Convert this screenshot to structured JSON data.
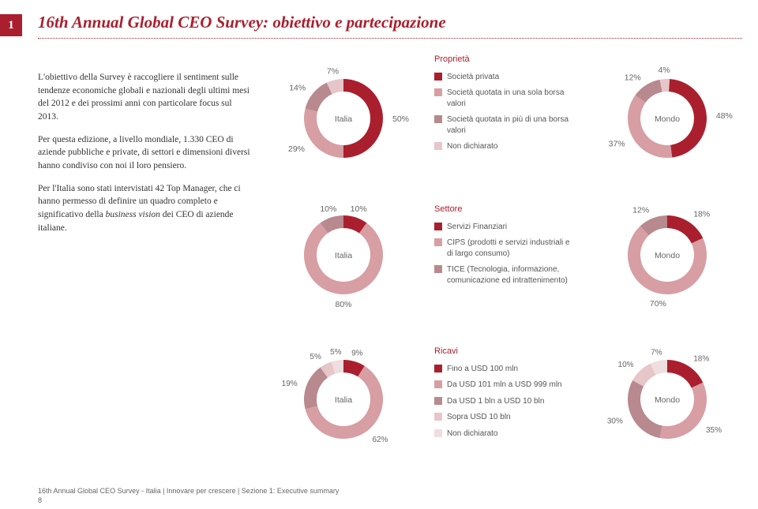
{
  "tab_number": "1",
  "title": "16th Annual Global CEO Survey: obiettivo e partecipazione",
  "paragraphs": {
    "p1": "L'obiettivo della Survey è raccogliere il sentiment sulle tendenze economiche globali e nazionali degli ultimi mesi del 2012 e dei prossimi anni con particolare focus sul 2013.",
    "p2a": "Per questa edizione, a livello mondiale, 1.330 CEO di aziende pubbliche e private, di settori e dimensioni diversi hanno condiviso con noi il loro pensiero.",
    "p3a": "Per l'Italia sono stati intervistati 42 Top Manager, che ci hanno permesso di definire un quadro completo e significativo della ",
    "p3i": "business vision",
    "p3b": " dei CEO di aziende italiane."
  },
  "footer": "16th Annual Global CEO Survey - Italia | Innovare per crescere | Sezione 1: Executive summary",
  "page_num": "8",
  "colors": {
    "c1": "#aa1f2e",
    "c2": "#d79ea3",
    "c3": "#b8898e",
    "c4": "#e6c6c9",
    "c5": "#efdedf"
  },
  "legends": {
    "proprieta": {
      "title": "Proprietà",
      "items": [
        {
          "color": "#aa1f2e",
          "label": "Società privata"
        },
        {
          "color": "#d79ea3",
          "label": "Società quotata in una sola borsa valori"
        },
        {
          "color": "#b8898e",
          "label": "Società quotata in più di una borsa valori"
        },
        {
          "color": "#e6c6c9",
          "label": "Non dichiarato"
        }
      ]
    },
    "settore": {
      "title": "Settore",
      "items": [
        {
          "color": "#aa1f2e",
          "label": "Servizi Finanziari"
        },
        {
          "color": "#d79ea3",
          "label": "CIPS (prodotti e servizi industriali e di largo consumo)"
        },
        {
          "color": "#b8898e",
          "label": "TICE (Tecnologia, informazione, comunicazione ed intrattenimento)"
        }
      ]
    },
    "ricavi": {
      "title": "Ricavi",
      "items": [
        {
          "color": "#aa1f2e",
          "label": "Fino a USD 100 mln"
        },
        {
          "color": "#d79ea3",
          "label": "Da USD 101 mln a USD 999 mln"
        },
        {
          "color": "#b8898e",
          "label": "Da USD 1 bln a USD 10 bln"
        },
        {
          "color": "#e6c6c9",
          "label": "Sopra USD 10 bln"
        },
        {
          "color": "#efdedf",
          "label": "Non dichiarato"
        }
      ]
    }
  },
  "donuts": {
    "italia_proprieta": {
      "center": "Italia",
      "slices": [
        {
          "color": "#aa1f2e",
          "pct": 50,
          "label": "50%"
        },
        {
          "color": "#d79ea3",
          "pct": 29,
          "label": "29%"
        },
        {
          "color": "#b8898e",
          "pct": 14,
          "label": "14%"
        },
        {
          "color": "#e6c6c9",
          "pct": 7,
          "label": "7%"
        }
      ]
    },
    "mondo_proprieta": {
      "center": "Mondo",
      "slices": [
        {
          "color": "#aa1f2e",
          "pct": 48,
          "label": "48%"
        },
        {
          "color": "#d79ea3",
          "pct": 37,
          "label": "37%"
        },
        {
          "color": "#b8898e",
          "pct": 12,
          "label": "12%"
        },
        {
          "color": "#e6c6c9",
          "pct": 4,
          "label": "4%"
        }
      ]
    },
    "italia_settore": {
      "center": "Italia",
      "slices": [
        {
          "color": "#aa1f2e",
          "pct": 10,
          "label": "10%"
        },
        {
          "color": "#d79ea3",
          "pct": 80,
          "label": "80%"
        },
        {
          "color": "#b8898e",
          "pct": 10,
          "label": "10%"
        }
      ]
    },
    "mondo_settore": {
      "center": "Mondo",
      "slices": [
        {
          "color": "#aa1f2e",
          "pct": 18,
          "label": "18%"
        },
        {
          "color": "#d79ea3",
          "pct": 70,
          "label": "70%"
        },
        {
          "color": "#b8898e",
          "pct": 12,
          "label": "12%"
        }
      ]
    },
    "italia_ricavi": {
      "center": "Italia",
      "slices": [
        {
          "color": "#aa1f2e",
          "pct": 9,
          "label": "9%"
        },
        {
          "color": "#d79ea3",
          "pct": 62,
          "label": "62%"
        },
        {
          "color": "#b8898e",
          "pct": 19,
          "label": "19%"
        },
        {
          "color": "#e6c6c9",
          "pct": 5,
          "label": "5%"
        },
        {
          "color": "#efdedf",
          "pct": 5,
          "label": "5%"
        }
      ]
    },
    "mondo_ricavi": {
      "center": "Mondo",
      "slices": [
        {
          "color": "#aa1f2e",
          "pct": 18,
          "label": "18%"
        },
        {
          "color": "#d79ea3",
          "pct": 35,
          "label": "35%"
        },
        {
          "color": "#b8898e",
          "pct": 30,
          "label": "30%"
        },
        {
          "color": "#e6c6c9",
          "pct": 10,
          "label": "10%"
        },
        {
          "color": "#efdedf",
          "pct": 7,
          "label": "7%"
        }
      ]
    }
  }
}
